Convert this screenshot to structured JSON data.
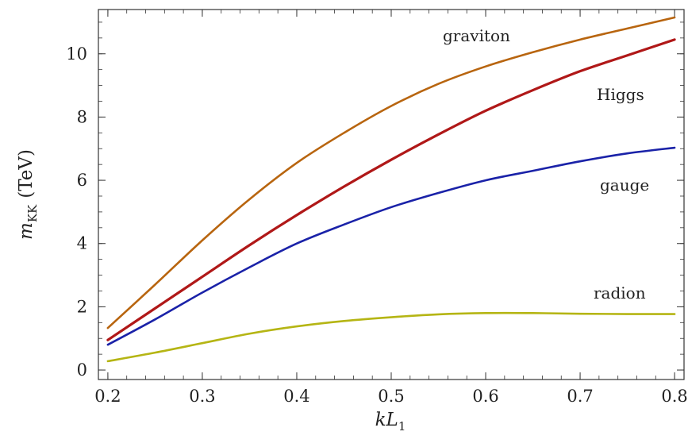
{
  "chart_data": {
    "type": "line",
    "xlabel_main": "kL",
    "xlabel_sub": "1",
    "ylabel_main": "m",
    "ylabel_sub": "KK",
    "ylabel_unit": "(TeV)",
    "xlim": [
      0.19,
      0.81
    ],
    "ylim": [
      -0.3,
      11.4
    ],
    "x_ticks": [
      "0.2",
      "0.3",
      "0.4",
      "0.5",
      "0.6",
      "0.7",
      "0.8"
    ],
    "y_ticks": [
      "0",
      "2",
      "4",
      "6",
      "8",
      "10"
    ],
    "grid": false,
    "x": [
      0.2,
      0.25,
      0.3,
      0.35,
      0.4,
      0.45,
      0.5,
      0.55,
      0.6,
      0.65,
      0.7,
      0.75,
      0.8
    ],
    "series": [
      {
        "name": "graviton",
        "color": "#b8650f",
        "values": [
          1.33,
          2.7,
          4.1,
          5.4,
          6.55,
          7.5,
          8.35,
          9.05,
          9.6,
          10.05,
          10.45,
          10.8,
          11.15
        ]
      },
      {
        "name": "Higgs",
        "color": "#b01818",
        "values": [
          0.95,
          1.95,
          2.95,
          3.95,
          4.9,
          5.8,
          6.65,
          7.45,
          8.2,
          8.85,
          9.45,
          9.95,
          10.45
        ]
      },
      {
        "name": "gauge",
        "color": "#1a22a8",
        "values": [
          0.8,
          1.6,
          2.45,
          3.25,
          4.0,
          4.6,
          5.15,
          5.6,
          6.0,
          6.3,
          6.6,
          6.85,
          7.03
        ]
      },
      {
        "name": "radion",
        "color": "#b5b514",
        "values": [
          0.28,
          0.55,
          0.85,
          1.15,
          1.38,
          1.55,
          1.67,
          1.76,
          1.8,
          1.8,
          1.78,
          1.77,
          1.77
        ]
      }
    ],
    "labels": {
      "graviton": "graviton",
      "Higgs": "Higgs",
      "gauge": "gauge",
      "radion": "radion"
    }
  }
}
